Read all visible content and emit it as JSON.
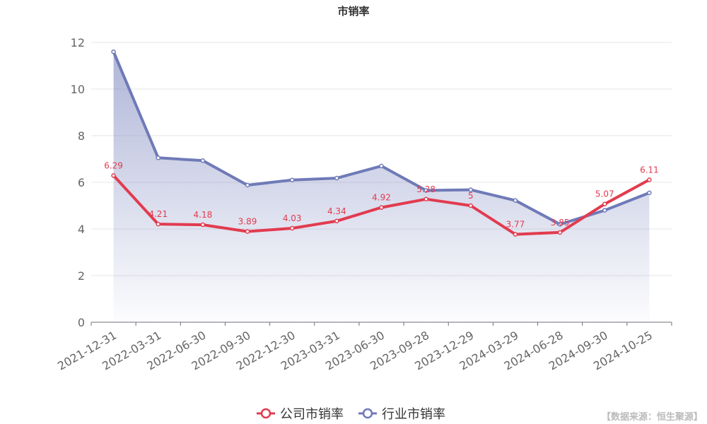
{
  "source_note": "【数据来源：恒生聚源】",
  "chart_data": {
    "type": "line",
    "title": "市销率",
    "categories": [
      "2021-12-31",
      "2022-03-31",
      "2022-06-30",
      "2022-09-30",
      "2022-12-30",
      "2023-03-31",
      "2023-06-30",
      "2023-09-28",
      "2023-12-29",
      "2024-03-29",
      "2024-06-28",
      "2024-09-30",
      "2024-10-25"
    ],
    "ylim": [
      0,
      12
    ],
    "yticks": [
      0,
      2,
      4,
      6,
      8,
      10,
      12
    ],
    "yticks_labels": [
      "0",
      "2",
      "4",
      "6",
      "8",
      "10",
      "12"
    ],
    "grid": true,
    "legend_position": "bottom-center",
    "series": [
      {
        "name": "公司市销率",
        "color": "#e23b4f",
        "values": [
          6.29,
          4.21,
          4.18,
          3.89,
          4.03,
          4.34,
          4.92,
          5.28,
          5.0,
          3.77,
          3.85,
          5.07,
          6.11
        ],
        "labels": [
          "6.29",
          "4.21",
          "4.18",
          "3.89",
          "4.03",
          "4.34",
          "4.92",
          "5.28",
          "5",
          "3.77",
          "3.85",
          "5.07",
          "6.11"
        ],
        "show_labels": true,
        "area": false
      },
      {
        "name": "行业市销率",
        "color": "#6f7ab8",
        "values": [
          11.6,
          7.05,
          6.93,
          5.88,
          6.1,
          6.18,
          6.7,
          5.65,
          5.68,
          5.22,
          4.2,
          4.8,
          5.55
        ],
        "show_labels": false,
        "area": true
      }
    ]
  }
}
